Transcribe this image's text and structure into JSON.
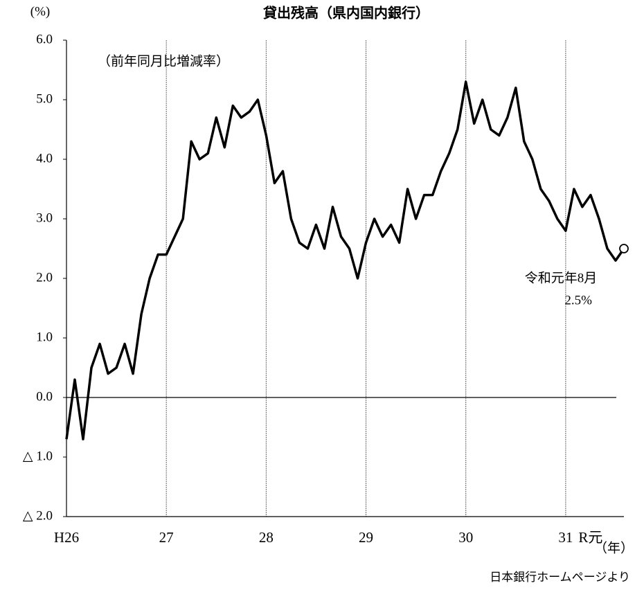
{
  "chart_data": {
    "type": "line",
    "title": "貸出残高（県内国内銀行）",
    "subtitle": "（前年同月比増減率）",
    "y_unit": "(%)",
    "x_unit": "（年）",
    "source": "日本銀行ホームページより",
    "annotation": [
      "令和元年8月",
      "2.5%"
    ],
    "categories": [
      "H26",
      null,
      null,
      null,
      null,
      null,
      null,
      null,
      null,
      null,
      null,
      null,
      "27",
      null,
      null,
      null,
      null,
      null,
      null,
      null,
      null,
      null,
      null,
      null,
      "28",
      null,
      null,
      null,
      null,
      null,
      null,
      null,
      null,
      null,
      null,
      null,
      "29",
      null,
      null,
      null,
      null,
      null,
      null,
      null,
      null,
      null,
      null,
      null,
      "30",
      null,
      null,
      null,
      null,
      null,
      null,
      null,
      null,
      null,
      null,
      null,
      "31",
      null,
      null,
      "R元",
      null,
      null,
      null,
      null
    ],
    "series": [
      {
        "name": "貸出残高",
        "color": "#000000",
        "values": [
          -0.7,
          0.3,
          -0.7,
          0.5,
          0.9,
          0.4,
          0.5,
          0.9,
          0.4,
          1.4,
          2.0,
          2.4,
          2.4,
          2.7,
          3.0,
          4.3,
          4.0,
          4.1,
          4.7,
          4.2,
          4.9,
          4.7,
          4.8,
          5.0,
          4.4,
          3.6,
          3.8,
          3.0,
          2.6,
          2.5,
          2.9,
          2.5,
          3.2,
          2.7,
          2.5,
          2.0,
          2.6,
          3.0,
          2.7,
          2.9,
          2.6,
          3.5,
          3.0,
          3.4,
          3.4,
          3.8,
          4.1,
          4.5,
          5.3,
          4.6,
          5.0,
          4.5,
          4.4,
          4.7,
          5.2,
          4.3,
          4.0,
          3.5,
          3.3,
          3.0,
          2.8,
          3.5,
          3.2,
          3.4,
          3.0,
          2.5,
          2.3,
          2.5
        ]
      }
    ],
    "ylim": [
      -2,
      6
    ],
    "yticks": [
      {
        "value": -2,
        "label": "△ 2.0"
      },
      {
        "value": -1,
        "label": "△ 1.0"
      },
      {
        "value": 0,
        "label": "0.0"
      },
      {
        "value": 1,
        "label": "1.0"
      },
      {
        "value": 2,
        "label": "2.0"
      },
      {
        "value": 3,
        "label": "3.0"
      },
      {
        "value": 4,
        "label": "4.0"
      },
      {
        "value": 5,
        "label": "5.0"
      },
      {
        "value": 6,
        "label": "6.0"
      }
    ]
  }
}
